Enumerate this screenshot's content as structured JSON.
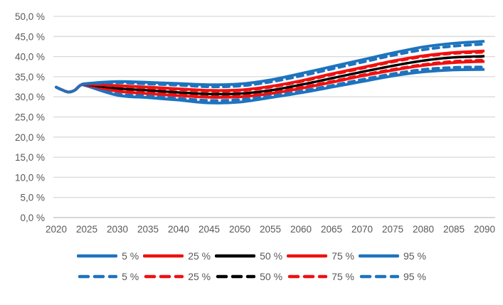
{
  "chart_data": {
    "type": "line",
    "title": "",
    "x": [
      2020,
      2021,
      2022,
      2023,
      2024,
      2025,
      2030,
      2035,
      2040,
      2045,
      2050,
      2055,
      2060,
      2065,
      2070,
      2075,
      2080,
      2085,
      2090
    ],
    "series": [
      {
        "name": "5 %",
        "style": "solid",
        "color": "#1E73BE",
        "values": [
          32.4,
          31.7,
          31.2,
          31.6,
          32.9,
          32.7,
          30.4,
          29.8,
          29.2,
          28.5,
          28.7,
          29.8,
          31.0,
          32.4,
          33.8,
          35.2,
          36.2,
          36.7,
          36.8
        ]
      },
      {
        "name": "25 %",
        "style": "solid",
        "color": "#F01010",
        "values": [
          32.4,
          31.7,
          31.2,
          31.6,
          32.9,
          32.9,
          31.4,
          30.8,
          30.3,
          29.9,
          30.0,
          30.8,
          32.1,
          33.6,
          35.2,
          36.6,
          37.8,
          38.5,
          38.8
        ]
      },
      {
        "name": "50 %",
        "style": "solid",
        "color": "#000000",
        "values": [
          32.4,
          31.7,
          31.2,
          31.6,
          32.9,
          33.0,
          32.1,
          31.6,
          31.1,
          30.7,
          30.8,
          31.6,
          33.0,
          34.6,
          36.2,
          37.7,
          39.0,
          39.8,
          40.1
        ]
      },
      {
        "name": "75 %",
        "style": "solid",
        "color": "#F01010",
        "values": [
          32.4,
          31.7,
          31.2,
          31.6,
          32.9,
          33.1,
          32.8,
          32.4,
          32.0,
          31.6,
          31.7,
          32.6,
          34.0,
          35.7,
          37.3,
          38.9,
          40.2,
          41.0,
          41.4
        ]
      },
      {
        "name": "95 %",
        "style": "solid",
        "color": "#1E73BE",
        "values": [
          32.4,
          31.7,
          31.2,
          31.6,
          32.9,
          33.3,
          33.8,
          33.6,
          33.3,
          33.0,
          33.2,
          34.2,
          35.8,
          37.5,
          39.2,
          40.9,
          42.4,
          43.3,
          43.8
        ]
      },
      {
        "name": "5 %",
        "style": "dashed",
        "color": "#1E73BE",
        "values": [
          32.4,
          31.7,
          31.2,
          31.6,
          32.9,
          32.8,
          30.7,
          30.2,
          29.6,
          29.1,
          29.3,
          30.2,
          31.4,
          32.8,
          34.3,
          35.7,
          36.8,
          37.3,
          37.4
        ]
      },
      {
        "name": "25 %",
        "style": "dashed",
        "color": "#F01010",
        "values": [
          32.4,
          31.7,
          31.2,
          31.6,
          32.9,
          32.9,
          31.5,
          31.0,
          30.5,
          30.1,
          30.2,
          31.0,
          32.3,
          33.8,
          35.4,
          36.8,
          38.0,
          38.8,
          39.1
        ]
      },
      {
        "name": "50 %",
        "style": "dashed",
        "color": "#000000",
        "values": [
          32.4,
          31.7,
          31.2,
          31.6,
          32.9,
          33.0,
          32.1,
          31.6,
          31.1,
          30.7,
          30.8,
          31.6,
          33.0,
          34.6,
          36.2,
          37.7,
          39.0,
          39.8,
          40.0
        ]
      },
      {
        "name": "75 %",
        "style": "dashed",
        "color": "#F01010",
        "values": [
          32.4,
          31.7,
          31.2,
          31.6,
          32.9,
          33.1,
          32.7,
          32.2,
          31.8,
          31.4,
          31.5,
          32.4,
          33.8,
          35.5,
          37.1,
          38.7,
          40.0,
          40.8,
          41.1
        ]
      },
      {
        "name": "95 %",
        "style": "dashed",
        "color": "#1E73BE",
        "values": [
          32.4,
          31.7,
          31.2,
          31.6,
          32.9,
          33.2,
          33.5,
          33.2,
          32.9,
          32.5,
          32.7,
          33.7,
          35.2,
          36.9,
          38.6,
          40.3,
          41.7,
          42.6,
          43.1
        ]
      }
    ],
    "y_axis": {
      "min": 0,
      "max": 50,
      "tick_step": 5,
      "tick_labels": [
        "0,0 %",
        "5,0 %",
        "10,0 %",
        "15,0 %",
        "20,0 %",
        "25,0 %",
        "30,0 %",
        "35,0 %",
        "40,0 %",
        "45,0 %",
        "50,0 %"
      ]
    },
    "x_axis": {
      "tick_labels": [
        "2020",
        "2025",
        "2030",
        "2035",
        "2040",
        "2045",
        "2050",
        "2055",
        "2060",
        "2065",
        "2070",
        "2075",
        "2080",
        "2085",
        "2090"
      ]
    },
    "grid": true,
    "legend_position": "bottom",
    "legend": {
      "rows": [
        [
          {
            "label": "5 %",
            "color": "#1E73BE",
            "style": "solid"
          },
          {
            "label": "25 %",
            "color": "#F01010",
            "style": "solid"
          },
          {
            "label": "50 %",
            "color": "#000000",
            "style": "solid"
          },
          {
            "label": "75 %",
            "color": "#F01010",
            "style": "solid"
          },
          {
            "label": "95 %",
            "color": "#1E73BE",
            "style": "solid"
          }
        ],
        [
          {
            "label": "5 %",
            "color": "#1E73BE",
            "style": "dashed"
          },
          {
            "label": "25 %",
            "color": "#F01010",
            "style": "dashed"
          },
          {
            "label": "50 %",
            "color": "#000000",
            "style": "dashed"
          },
          {
            "label": "75 %",
            "color": "#F01010",
            "style": "dashed"
          },
          {
            "label": "95 %",
            "color": "#1E73BE",
            "style": "dashed"
          }
        ]
      ]
    },
    "colors": {
      "gridline": "#D9D9D9",
      "axis_line": "#BFBFBF",
      "tick_text": "#595959",
      "background": "#FFFFFF"
    }
  }
}
